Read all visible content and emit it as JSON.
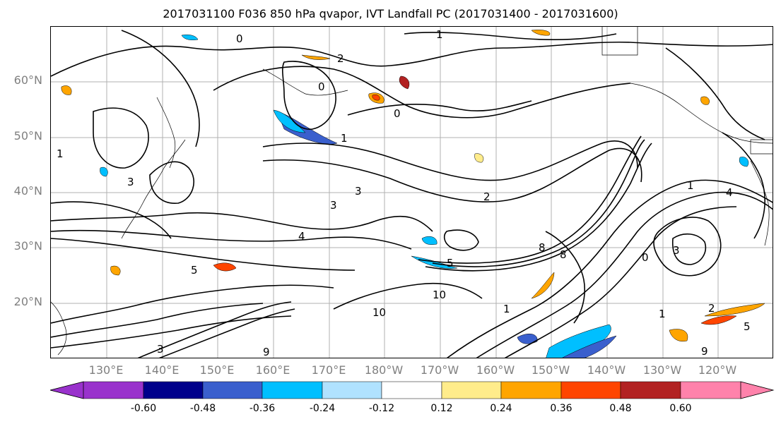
{
  "title": "2017031100 F036 850 hPa qvapor, IVT Landfall PC (2017031400 - 2017031600)",
  "lat_labels": [
    "60°N",
    "50°N",
    "40°N",
    "30°N",
    "20°N"
  ],
  "lon_labels": [
    "130°E",
    "140°E",
    "150°E",
    "160°E",
    "170°E",
    "180°W",
    "170°W",
    "160°W",
    "150°W",
    "140°W",
    "130°W",
    "120°W"
  ],
  "contour_labels": [
    "0",
    "1",
    "2",
    "0",
    "0",
    "1",
    "3",
    "2",
    "4",
    "3",
    "5",
    "8",
    "10",
    "9",
    "3",
    "1",
    "4",
    "5",
    "8",
    "1",
    "0",
    "3",
    "1",
    "2",
    "5",
    "9",
    "1",
    "3",
    "10"
  ],
  "colorbar": {
    "colors": [
      "#9932cc",
      "#00008b",
      "#3a5fcd",
      "#00bfff",
      "#b0e2ff",
      "#ffffff",
      "#ffec8b",
      "#ffa500",
      "#ff4500",
      "#b22222",
      "#ff82ab"
    ],
    "tick_labels": [
      "-0.60",
      "-0.48",
      "-0.36",
      "-0.24",
      "-0.12",
      "0.12",
      "0.24",
      "0.36",
      "0.48",
      "0.60"
    ]
  }
}
